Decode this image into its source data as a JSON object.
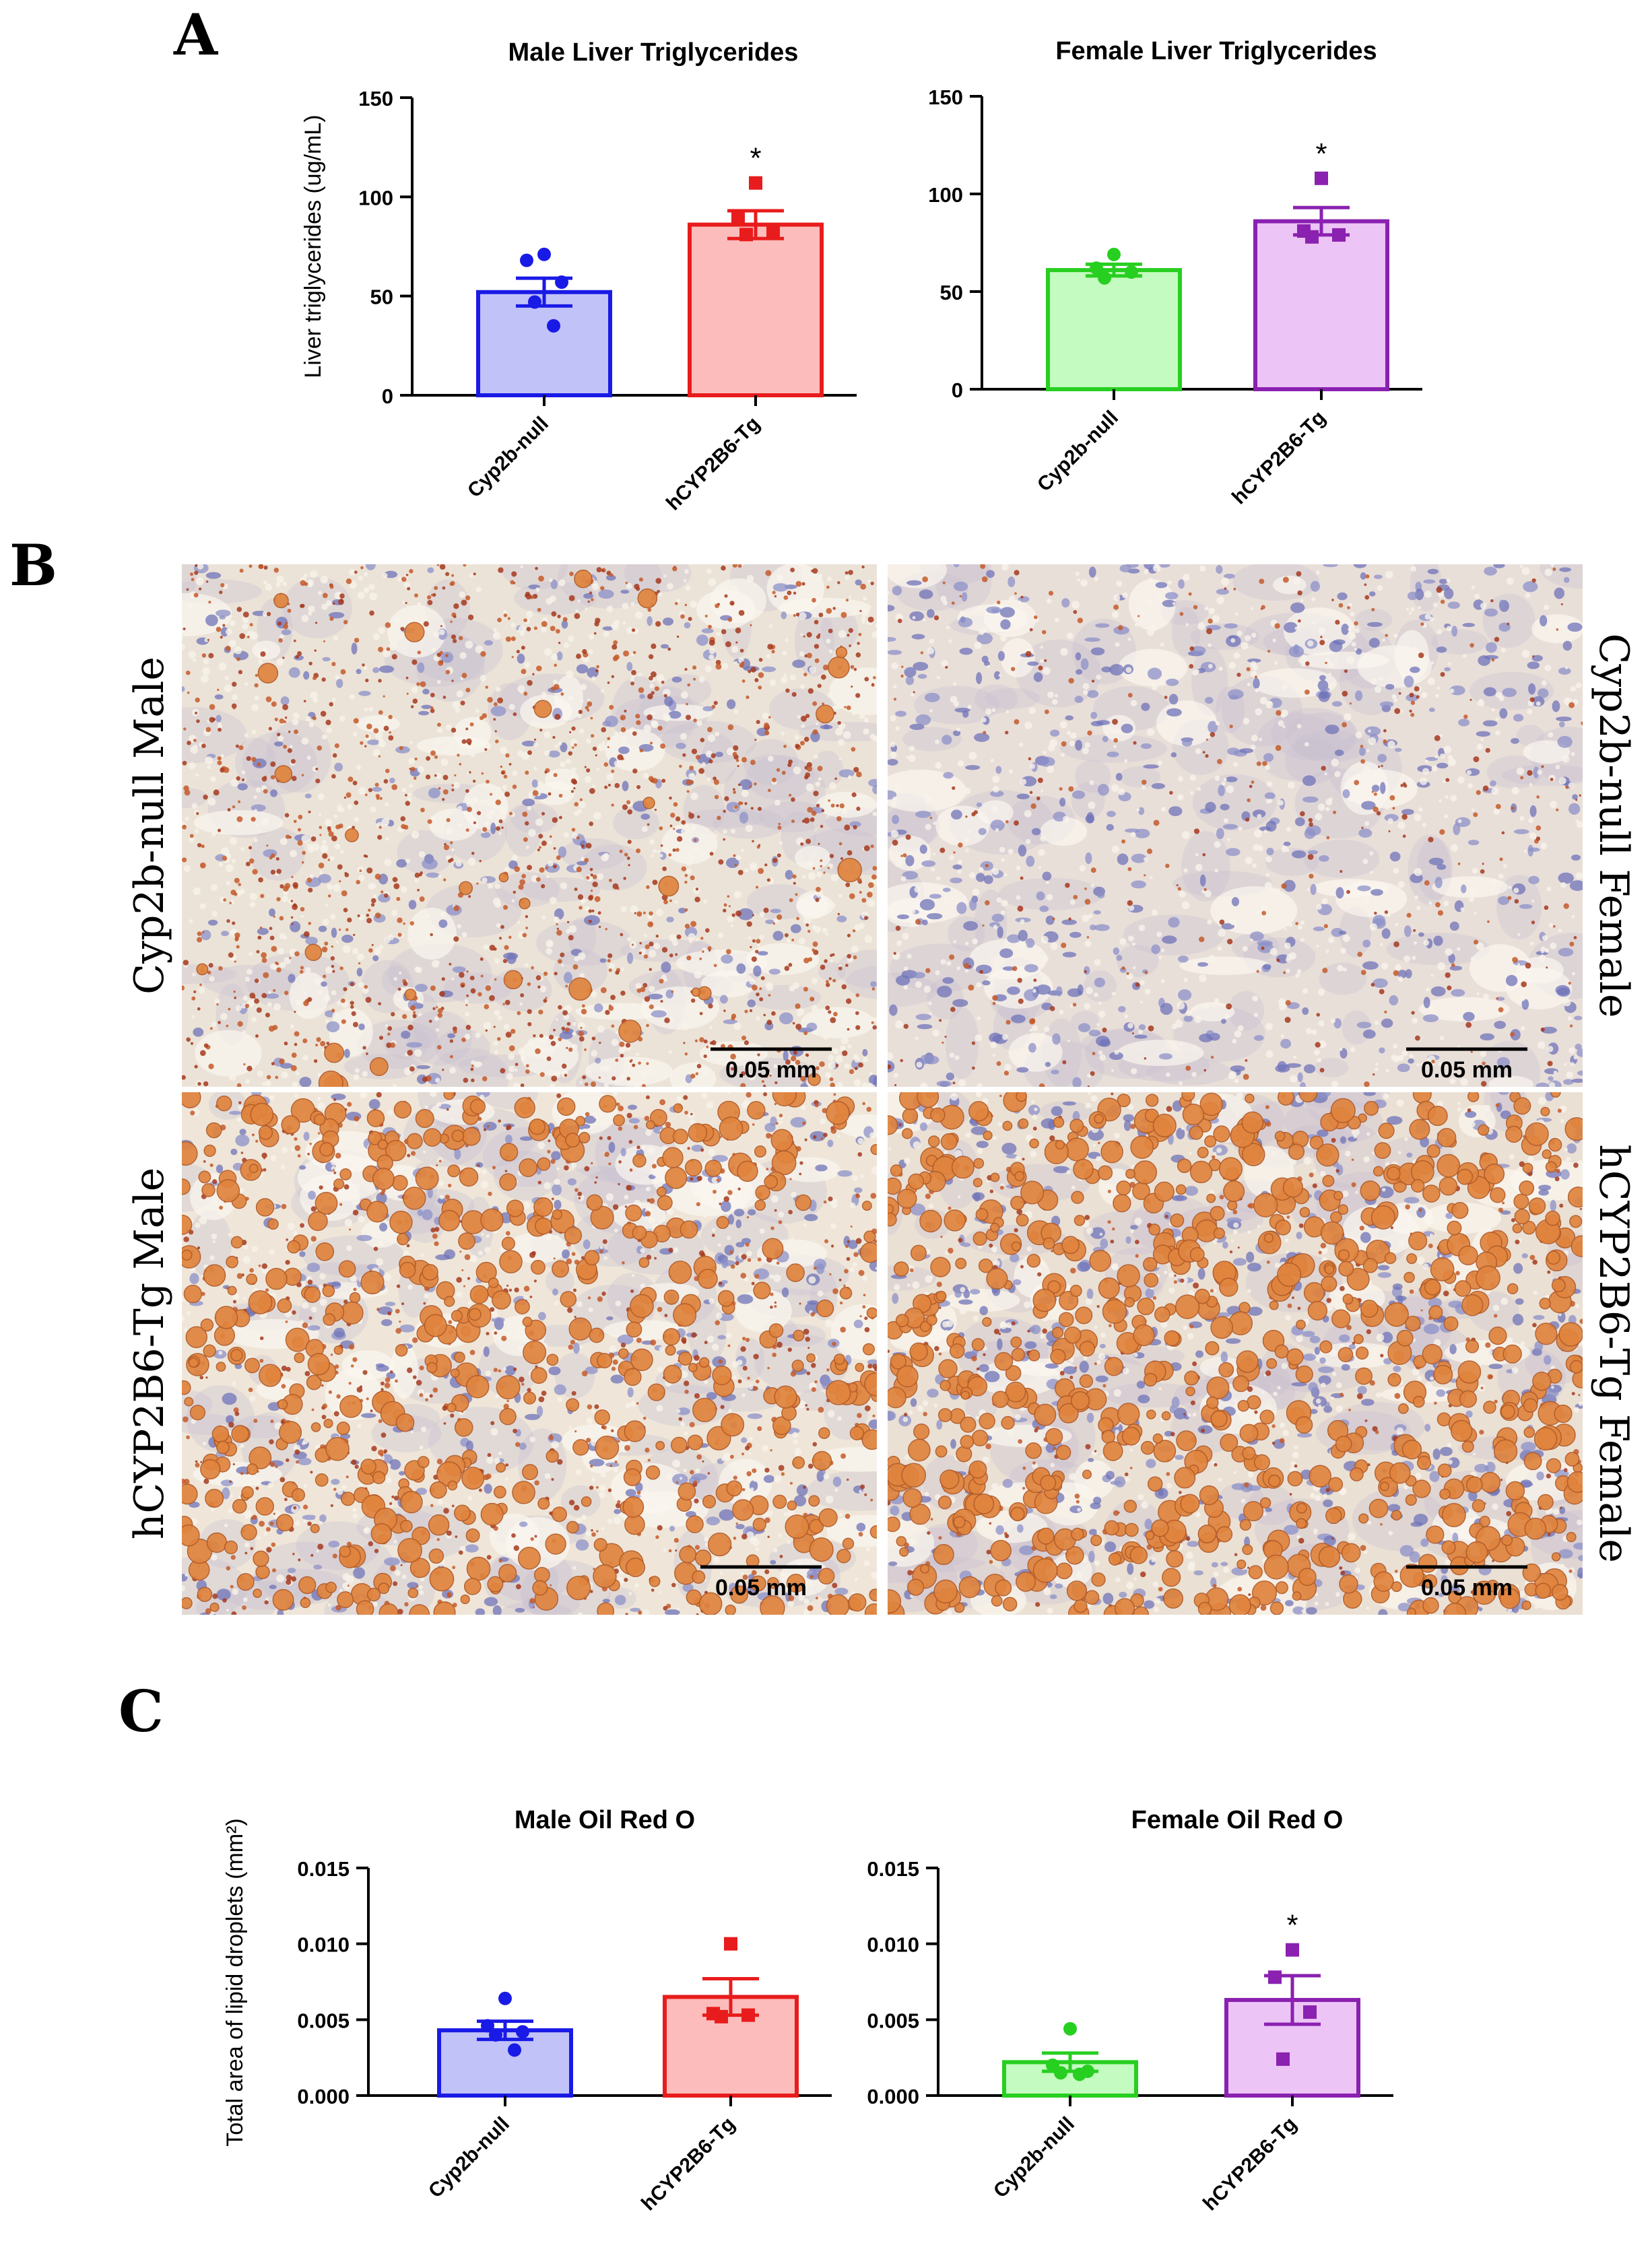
{
  "panels": {
    "a_letter": "A",
    "b_letter": "B",
    "c_letter": "C"
  },
  "colors": {
    "cyp2b_null_male_fill": "#c0c2f8",
    "cyp2b_null_male_stroke": "#1a1ae6",
    "hcyp2b6_male_fill": "#fcbcbc",
    "hcyp2b6_male_stroke": "#e81c1c",
    "cyp2b_null_female_fill": "#c4fbc0",
    "cyp2b_null_female_stroke": "#27cf20",
    "hcyp2b6_female_fill": "#ecc4f6",
    "hcyp2b6_female_stroke": "#8a21b0"
  },
  "micrographs": {
    "row_labels": [
      "Cyp2b-null Male",
      "hCYP2B6-Tg Male"
    ],
    "col_labels_right": [
      "Cyp2b-null Female",
      "hCYP2B6-Tg Female"
    ],
    "scale_bar": "0.05 mm"
  },
  "chart_data": [
    {
      "id": "male_tg",
      "type": "bar",
      "title": "Male Liver Triglycerides",
      "ylabel": "Liver triglycerides (ug/mL)",
      "xlabel": "",
      "ylim": [
        0,
        150
      ],
      "yticks": [
        0,
        50,
        100,
        150
      ],
      "ytick_labels": [
        "0",
        "50",
        "100",
        "150"
      ],
      "categories": [
        "Cyp2b-null",
        "hCYP2B6-Tg"
      ],
      "values": [
        52,
        86
      ],
      "sem": [
        7,
        7
      ],
      "points": [
        [
          71,
          68,
          57,
          47,
          35
        ],
        [
          107,
          89,
          83,
          81
        ]
      ],
      "markers": [
        "circle",
        "square"
      ],
      "significance": [
        "",
        "*"
      ]
    },
    {
      "id": "female_tg",
      "type": "bar",
      "title": "Female Liver Triglycerides",
      "ylabel": "",
      "xlabel": "",
      "ylim": [
        0,
        150
      ],
      "yticks": [
        0,
        50,
        100,
        150
      ],
      "ytick_labels": [
        "0",
        "50",
        "100",
        "150"
      ],
      "categories": [
        "Cyp2b-null",
        "hCYP2B6-Tg"
      ],
      "values": [
        61,
        86
      ],
      "sem": [
        3,
        7
      ],
      "points": [
        [
          69,
          62,
          60,
          57
        ],
        [
          108,
          81,
          79,
          78
        ]
      ],
      "markers": [
        "circle",
        "square"
      ],
      "significance": [
        "",
        "*"
      ]
    },
    {
      "id": "male_oro",
      "type": "bar",
      "title": "Male Oil Red O",
      "ylabel": "Total area of lipid droplets (mm²)",
      "xlabel": "",
      "ylim": [
        0,
        0.015
      ],
      "yticks": [
        0,
        0.005,
        0.01,
        0.015
      ],
      "ytick_labels": [
        "0.000",
        "0.005",
        "0.010",
        "0.015"
      ],
      "categories": [
        "Cyp2b-null",
        "hCYP2B6-Tg"
      ],
      "values": [
        0.0043,
        0.0065
      ],
      "sem": [
        0.0006,
        0.0012
      ],
      "points": [
        [
          0.0064,
          0.0046,
          0.0042,
          0.004,
          0.003
        ],
        [
          0.01,
          0.0054,
          0.0053,
          0.0052
        ]
      ],
      "markers": [
        "circle",
        "square"
      ],
      "significance": [
        "",
        ""
      ]
    },
    {
      "id": "female_oro",
      "type": "bar",
      "title": "Female Oil Red O",
      "ylabel": "",
      "xlabel": "",
      "ylim": [
        0,
        0.015
      ],
      "yticks": [
        0,
        0.005,
        0.01,
        0.015
      ],
      "ytick_labels": [
        "0.000",
        "0.005",
        "0.010",
        "0.015"
      ],
      "categories": [
        "Cyp2b-null",
        "hCYP2B6-Tg"
      ],
      "values": [
        0.0022,
        0.0063
      ],
      "sem": [
        0.0006,
        0.0016
      ],
      "points": [
        [
          0.0044,
          0.002,
          0.0016,
          0.0015,
          0.0014
        ],
        [
          0.0096,
          0.0078,
          0.0055,
          0.0024
        ]
      ],
      "markers": [
        "circle",
        "square"
      ],
      "significance": [
        "",
        "*"
      ]
    }
  ]
}
